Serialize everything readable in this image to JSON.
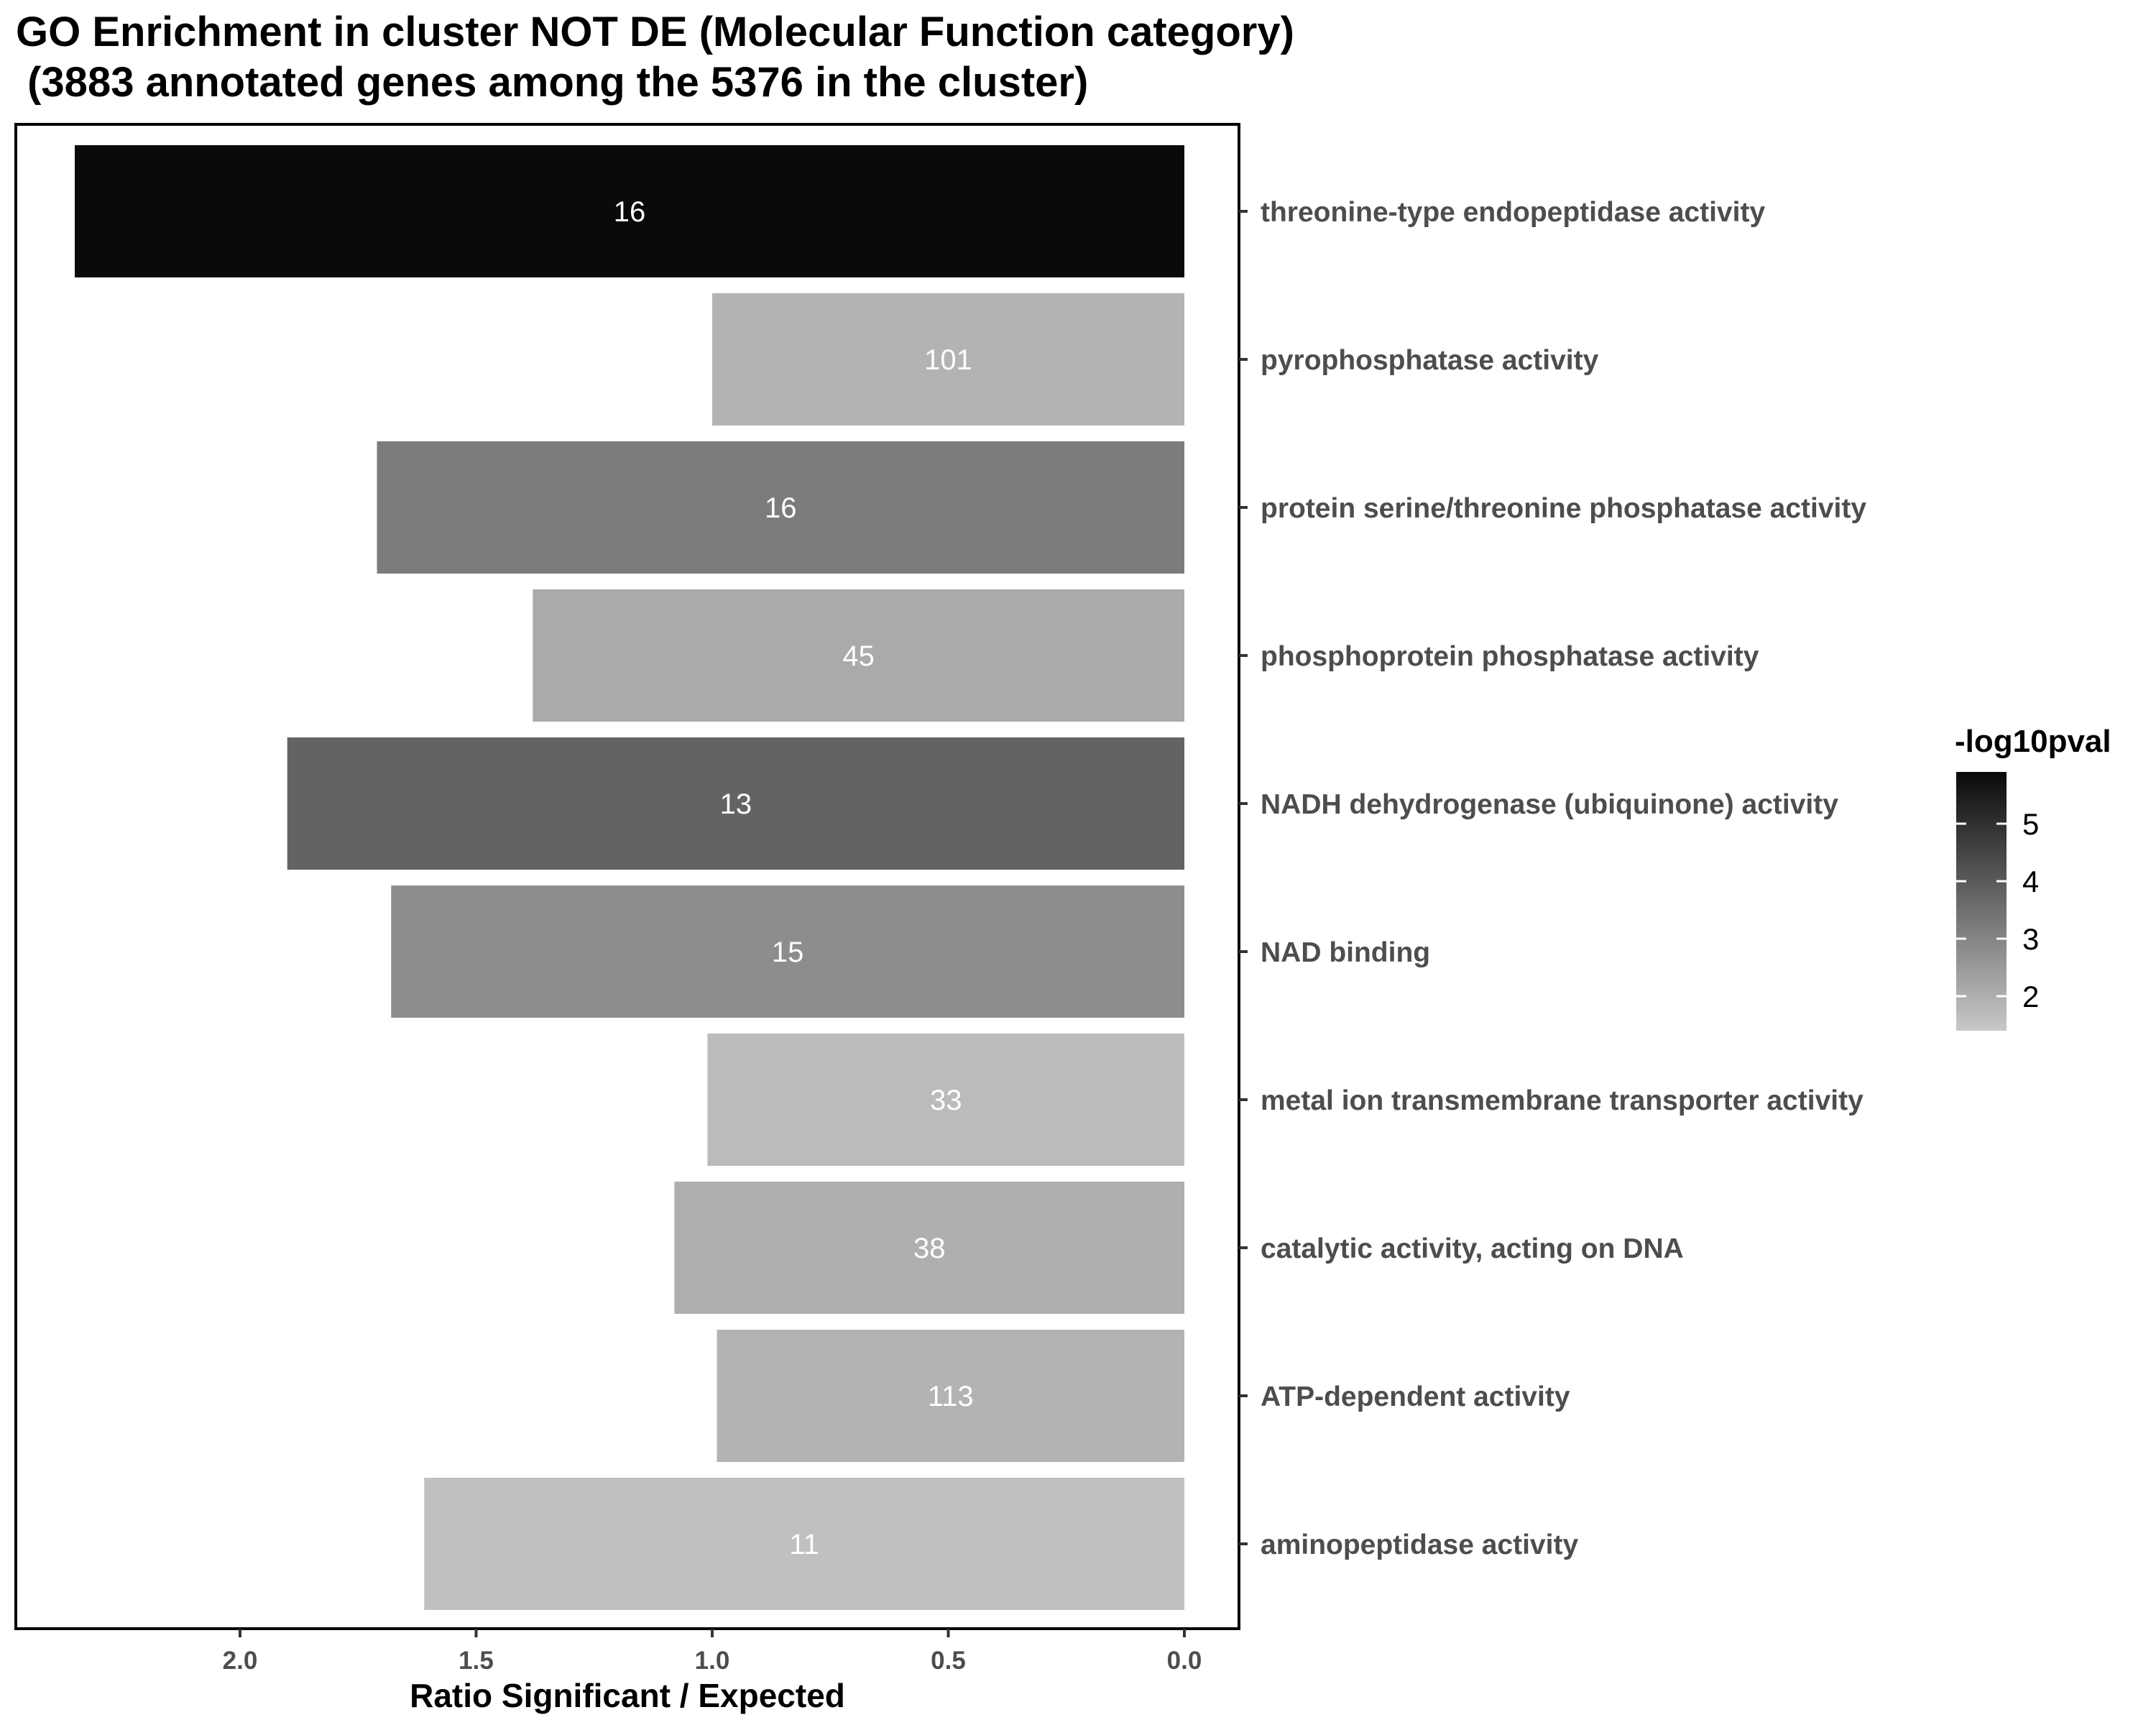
{
  "chart_data": {
    "type": "bar",
    "orientation": "horizontal",
    "title": "GO Enrichment in cluster NOT DE (Molecular Function category)",
    "subtitle": " (3883 annotated genes among the 5376 in the cluster)",
    "xlabel": "Ratio Significant / Expected",
    "ylabel": "",
    "x_reversed": true,
    "xlim": [
      0,
      2.5
    ],
    "xticks": [
      2.0,
      1.5,
      1.0,
      0.5,
      0.0
    ],
    "xtick_labels": [
      "2.0",
      "1.5",
      "1.0",
      "0.5",
      "0.0"
    ],
    "categories": [
      "threonine-type endopeptidase activity",
      "pyrophosphatase activity",
      "protein serine/threonine phosphatase activity",
      "phosphoprotein phosphatase activity",
      "NADH dehydrogenase (ubiquinone) activity",
      "NAD binding",
      "metal ion transmembrane transporter activity",
      "catalytic activity, acting on DNA",
      "ATP-dependent activity",
      "aminopeptidase activity"
    ],
    "values": [
      2.35,
      1.0,
      1.71,
      1.38,
      1.9,
      1.68,
      1.01,
      1.08,
      0.99,
      1.61
    ],
    "bar_labels": [
      "16",
      "101",
      "16",
      "45",
      "13",
      "15",
      "33",
      "38",
      "113",
      "11"
    ],
    "color_values": [
      5.9,
      1.9,
      3.2,
      2.1,
      3.8,
      2.8,
      1.7,
      2.0,
      1.9,
      1.6
    ],
    "legend": {
      "title": "-log10pval",
      "position": "right",
      "range": [
        1.4,
        5.9
      ],
      "ticks": [
        2,
        3,
        4,
        5
      ],
      "tick_labels": [
        "2",
        "3",
        "4",
        "5"
      ],
      "color_low": "#c8c8c8",
      "color_high": "#0a0a0a"
    },
    "grid": false
  }
}
